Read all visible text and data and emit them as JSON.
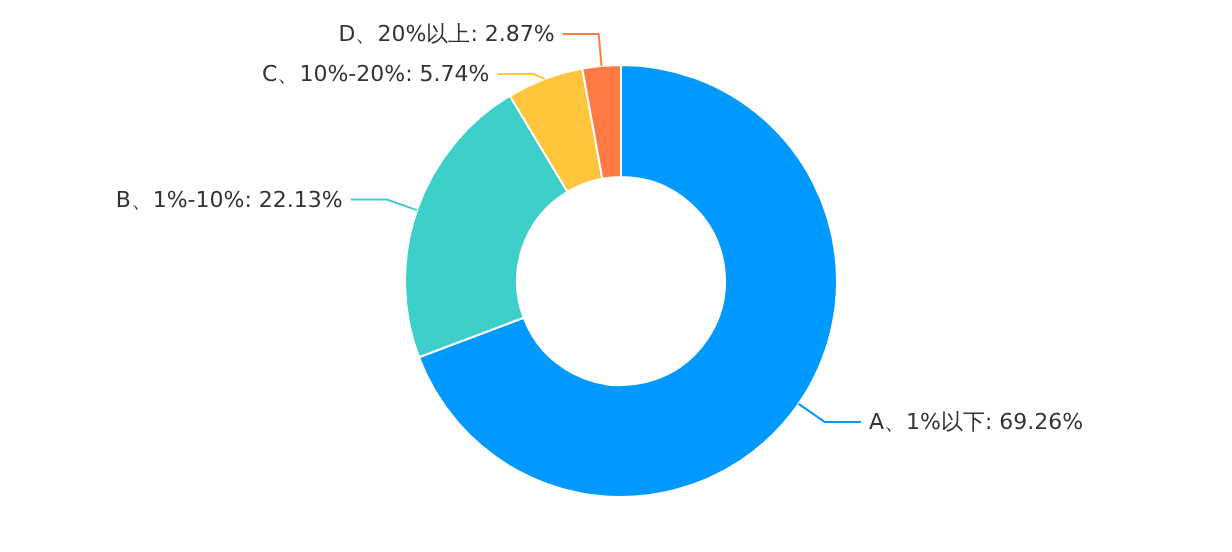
{
  "chart_data": {
    "type": "donut",
    "categories": [
      "A、1%以下",
      "B、1%-10%",
      "C、10%-20%",
      "D、20%以上"
    ],
    "values": [
      69.26,
      22.13,
      5.74,
      2.87
    ],
    "value_labels": [
      "69.26%",
      "22.13%",
      "5.74%",
      "2.87%"
    ],
    "colors": [
      "#0099ff",
      "#3dcfc9",
      "#ffc53d",
      "#ff7a45"
    ]
  }
}
